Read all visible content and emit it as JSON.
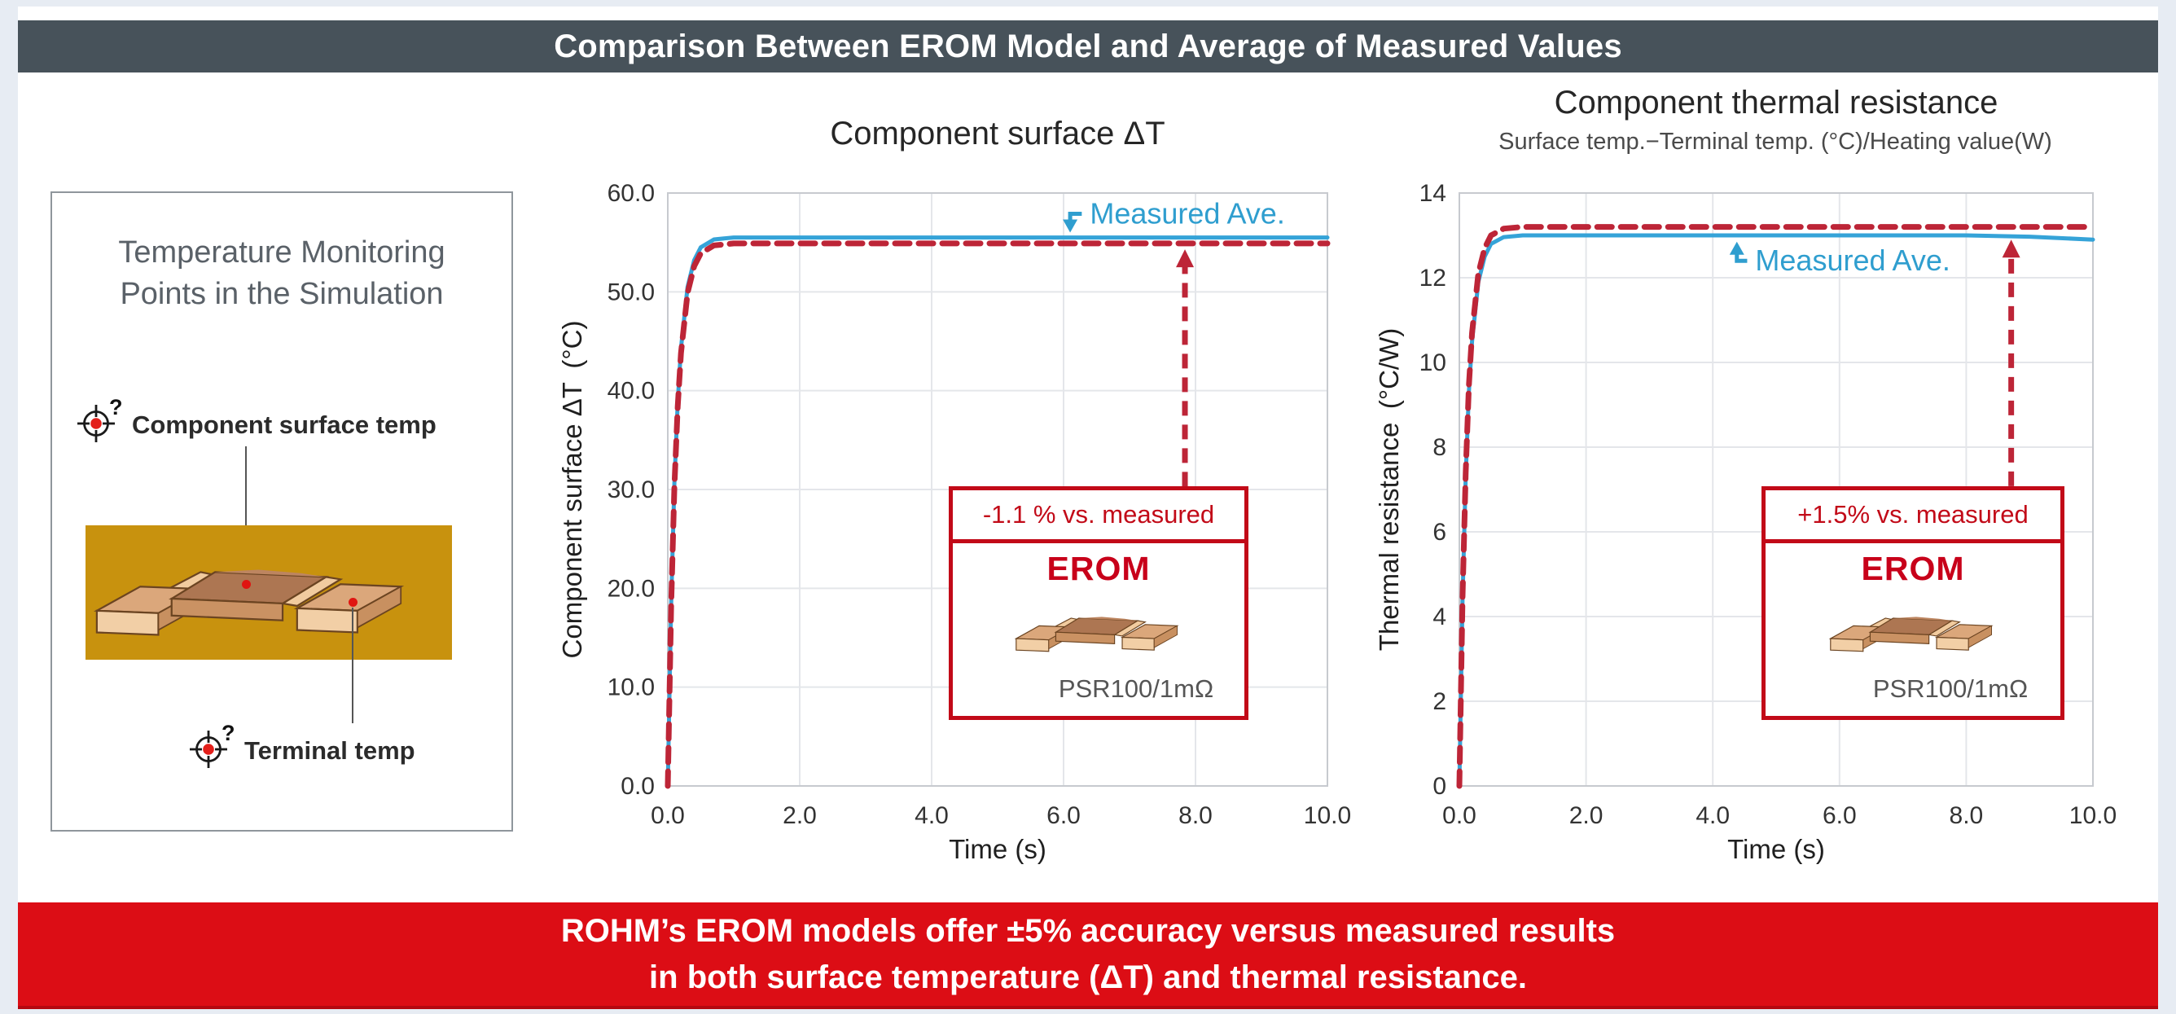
{
  "header": {
    "title": "Comparison Between EROM Model and Average of Measured Values"
  },
  "banner": {
    "line1": "ROHM’s EROM models offer ±5% accuracy versus measured results",
    "line2": "in both surface temperature (ΔT) and thermal resistance."
  },
  "left_panel": {
    "title": "Temperature Monitoring\nPoints in the Simulation",
    "markers": [
      {
        "icon": "crosshair-target-icon",
        "label": "Component surface temp"
      },
      {
        "icon": "crosshair-target-icon",
        "label": "Terminal temp"
      }
    ]
  },
  "colors": {
    "header_bg": "#47525a",
    "banner_red": "#dc0d15",
    "measured_blue": "#35a3d8",
    "erom_red": "#bd2537",
    "box_border_red": "#c20a18",
    "gold_board": "#c8920e",
    "grid": "#e4e6ea"
  },
  "chart_data": [
    {
      "type": "line",
      "title": "Component surface ΔT",
      "xlabel": "Time (s)",
      "ylabel": "Component surface ΔT (°C)",
      "xlim": [
        0,
        10
      ],
      "ylim": [
        0,
        60
      ],
      "grid": true,
      "legend_position": "inline-annotation",
      "xticks": [
        0,
        2,
        4,
        6,
        8,
        10
      ],
      "xtick_labels": [
        "0.0",
        "2.0",
        "4.0",
        "6.0",
        "8.0",
        "10.0"
      ],
      "yticks": [
        0,
        10,
        20,
        30,
        40,
        50,
        60
      ],
      "ytick_labels": [
        "0.0",
        "10.0",
        "20.0",
        "30.0",
        "40.0",
        "50.0",
        "60.0"
      ],
      "x": [
        0,
        0.05,
        0.1,
        0.15,
        0.2,
        0.3,
        0.4,
        0.5,
        0.7,
        1.0,
        1.5,
        2,
        3,
        4,
        5,
        6,
        7,
        8,
        9,
        10
      ],
      "series": [
        {
          "name": "Measured Ave.",
          "color": "#35a3d8",
          "style": "solid",
          "values": [
            0,
            18.3,
            30.6,
            38.8,
            44.3,
            50.5,
            53.2,
            54.5,
            55.3,
            55.5,
            55.5,
            55.5,
            55.5,
            55.5,
            55.5,
            55.5,
            55.5,
            55.5,
            55.5,
            55.5
          ]
        },
        {
          "name": "EROM",
          "color": "#bd2537",
          "style": "dashed",
          "values": [
            0,
            18.1,
            30.3,
            38.4,
            43.8,
            49.9,
            52.6,
            53.9,
            54.7,
            54.9,
            54.9,
            54.9,
            54.9,
            54.9,
            54.9,
            54.9,
            54.9,
            54.9,
            54.9,
            54.9
          ]
        }
      ],
      "annotations": {
        "measured_label": {
          "text": "Measured Ave.",
          "label_at": [
            6.35,
            57.9
          ],
          "elbow": [
            6.1,
            57.9
          ],
          "tip": [
            6.1,
            56.0
          ],
          "dir": "down"
        },
        "arrow": {
          "x": 7.84,
          "y0": 30.3,
          "y1": 54.3
        },
        "callout_box": {
          "delta_text": "-1.1 % vs. measured",
          "model_label": "EROM",
          "part_label": "PSR100/1mΩ"
        }
      }
    },
    {
      "type": "line",
      "title": "Component thermal resistance",
      "subtitle": "Surface temp.−Terminal temp. (°C)/Heating value(W)",
      "xlabel": "Time (s)",
      "ylabel": "Thermal resistance (°C/W)",
      "xlim": [
        0,
        10
      ],
      "ylim": [
        0,
        14
      ],
      "grid": true,
      "legend_position": "inline-annotation",
      "xticks": [
        0,
        2,
        4,
        6,
        8,
        10
      ],
      "xtick_labels": [
        "0.0",
        "2.0",
        "4.0",
        "6.0",
        "8.0",
        "10.0"
      ],
      "yticks": [
        0,
        2,
        4,
        6,
        8,
        10,
        12,
        14
      ],
      "ytick_labels": [
        "0",
        "2",
        "4",
        "6",
        "8",
        "10",
        "12",
        "14"
      ],
      "x": [
        0,
        0.05,
        0.1,
        0.15,
        0.2,
        0.3,
        0.4,
        0.5,
        0.7,
        1.0,
        1.5,
        2,
        3,
        4,
        5,
        6,
        7,
        8,
        9,
        10
      ],
      "series": [
        {
          "name": "Measured Ave.",
          "color": "#35a3d8",
          "style": "solid",
          "values": [
            0,
            4.4,
            7.3,
            9.3,
            10.5,
            11.9,
            12.5,
            12.8,
            12.96,
            13.0,
            13.0,
            13.0,
            13.0,
            13.0,
            13.0,
            13.0,
            13.0,
            13.0,
            12.97,
            12.9
          ]
        },
        {
          "name": "EROM",
          "color": "#bd2537",
          "style": "dashed",
          "values": [
            0,
            4.45,
            7.4,
            9.45,
            10.7,
            12.1,
            12.7,
            13.0,
            13.16,
            13.2,
            13.2,
            13.2,
            13.2,
            13.2,
            13.2,
            13.2,
            13.2,
            13.2,
            13.2,
            13.2
          ]
        }
      ],
      "annotations": {
        "measured_label": {
          "text": "Measured Ave.",
          "label_at": [
            4.62,
            12.4
          ],
          "elbow": [
            4.38,
            12.4
          ],
          "tip": [
            4.38,
            12.85
          ],
          "dir": "up"
        },
        "arrow": {
          "x": 8.71,
          "y0": 7.08,
          "y1": 12.9
        },
        "callout_box": {
          "delta_text": "+1.5% vs. measured",
          "model_label": "EROM",
          "part_label": "PSR100/1mΩ"
        }
      }
    }
  ]
}
